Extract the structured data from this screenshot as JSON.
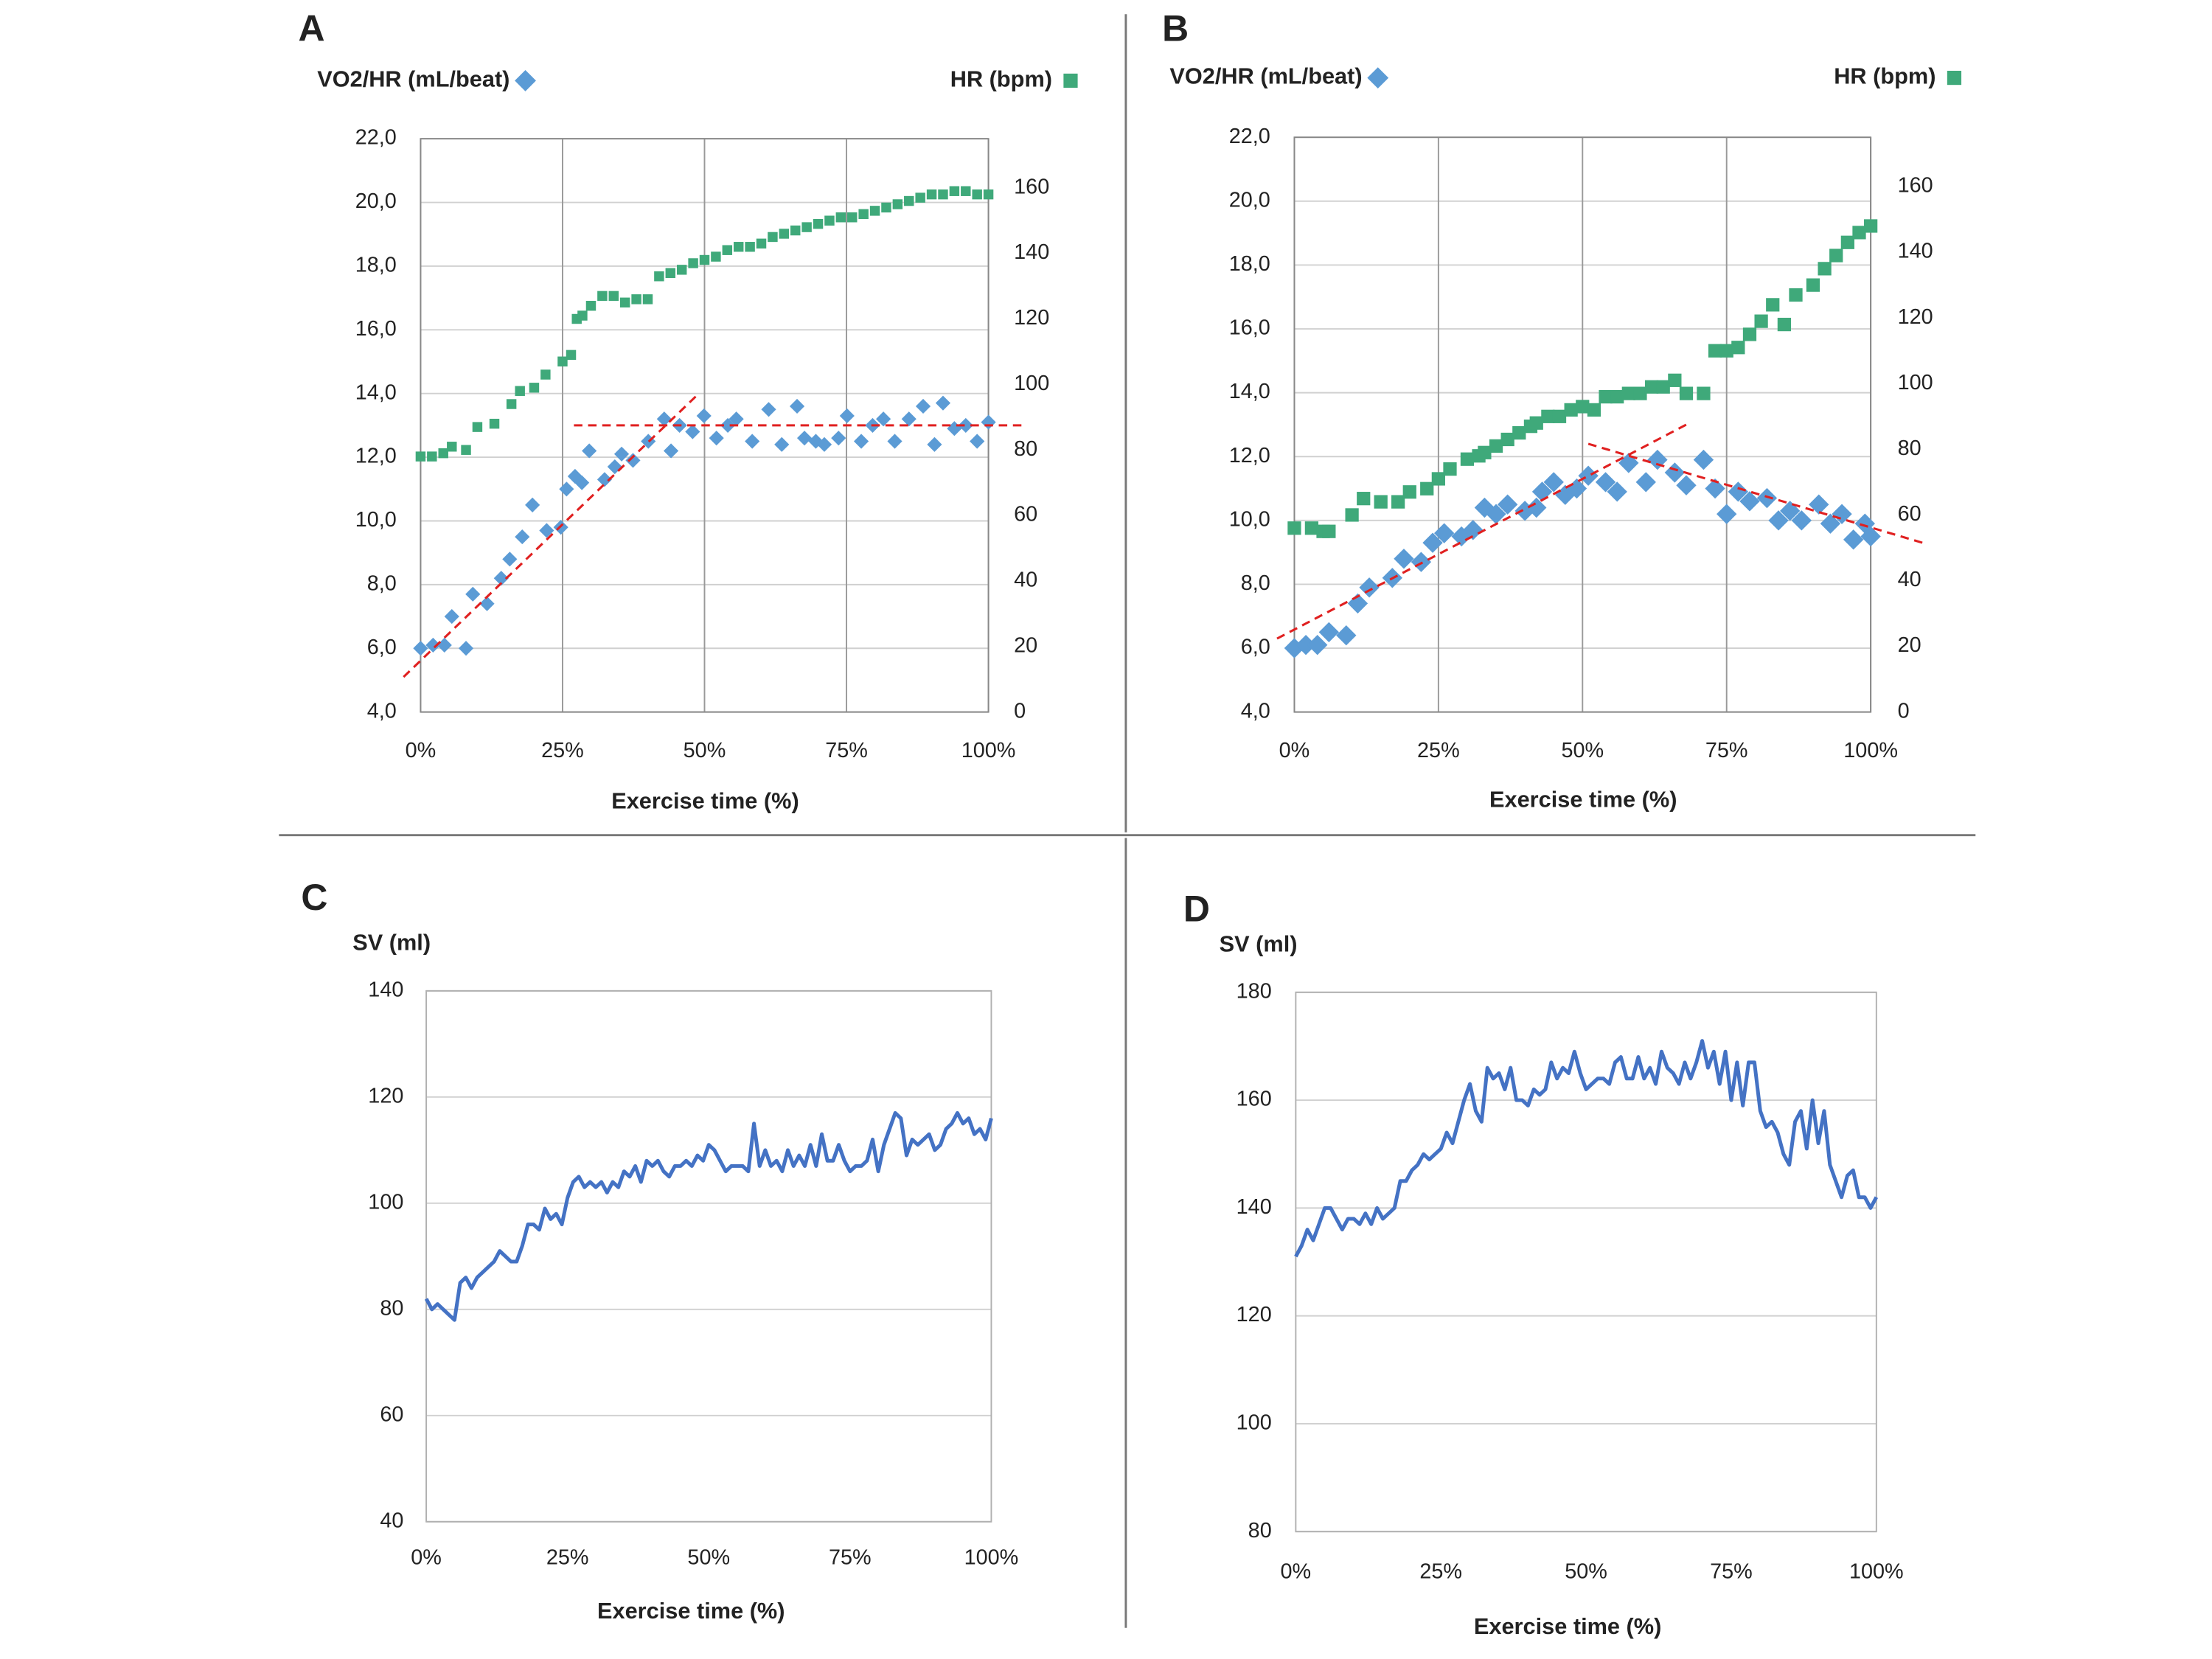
{
  "chart_data": [
    {
      "label": "A",
      "type": "scatter",
      "xlabel": "Exercise time (%)",
      "xlim": [
        0,
        100
      ],
      "ylim": [
        4,
        22
      ],
      "y2lim": [
        0,
        175
      ],
      "grid": [
        "x",
        "y"
      ],
      "xticks": [
        {
          "value": 0,
          "label": "0%"
        },
        {
          "value": 25,
          "label": "25%"
        },
        {
          "value": 50,
          "label": "50%"
        },
        {
          "value": 75,
          "label": "75%"
        },
        {
          "value": 100,
          "label": "100%"
        }
      ],
      "yticks": [
        {
          "value": 4,
          "label": "4,0"
        },
        {
          "value": 6,
          "label": "6,0"
        },
        {
          "value": 8,
          "label": "8,0"
        },
        {
          "value": 10,
          "label": "10,0"
        },
        {
          "value": 12,
          "label": "12,0"
        },
        {
          "value": 14,
          "label": "14,0"
        },
        {
          "value": 16,
          "label": "16,0"
        },
        {
          "value": 18,
          "label": "18,0"
        },
        {
          "value": 20,
          "label": "20,0"
        },
        {
          "value": 22,
          "label": "22,0"
        }
      ],
      "y2ticks": [
        0,
        20,
        40,
        60,
        80,
        100,
        120,
        140,
        160
      ],
      "series": [
        {
          "name": "VO2/HR (mL/beat)",
          "color": "#5b9bd5",
          "marker": "diamond",
          "x": [
            0,
            2.2,
            4.2,
            5.5,
            8,
            9.2,
            11.7,
            14.2,
            15.7,
            17.9,
            19.7,
            22.2,
            24.7,
            25.7,
            27.2,
            28.4,
            29.7,
            32.4,
            34.2,
            35.4,
            37.4,
            40.1,
            42.9,
            44.1,
            45.6,
            47.9,
            49.9,
            52.1,
            54.1,
            55.6,
            58.4,
            61.3,
            63.6,
            66.3,
            67.6,
            69.6,
            71.1,
            73.6,
            75.1,
            77.6,
            79.6,
            81.5,
            83.5,
            86,
            88.5,
            90.5,
            92,
            94,
            96,
            98,
            100
          ],
          "values": [
            6.0,
            6.1,
            6.1,
            7.0,
            6.0,
            7.7,
            7.4,
            8.2,
            8.8,
            9.5,
            10.5,
            9.7,
            9.8,
            11.0,
            11.4,
            11.2,
            12.2,
            11.3,
            11.7,
            12.1,
            11.9,
            12.5,
            13.2,
            12.2,
            13.0,
            12.8,
            13.3,
            12.6,
            13.0,
            13.2,
            12.5,
            13.5,
            12.4,
            13.6,
            12.6,
            12.5,
            12.4,
            12.6,
            13.3,
            12.5,
            13.0,
            13.2,
            12.5,
            13.2,
            13.6,
            12.4,
            13.7,
            12.9,
            13.0,
            12.5,
            13.1
          ]
        },
        {
          "name": "HR (bpm)",
          "color": "#3fa97a",
          "marker": "square",
          "axis": "y2",
          "x": [
            0,
            2,
            4,
            5.5,
            8,
            10,
            13,
            16,
            17.5,
            20,
            22,
            25,
            26.5,
            27.5,
            28.5,
            30,
            32,
            34,
            36,
            38,
            40,
            42,
            44,
            46,
            48,
            50,
            52,
            54,
            56,
            58,
            60,
            62,
            64,
            66,
            68,
            70,
            72,
            74,
            76,
            78,
            80,
            82,
            84,
            86,
            88,
            90,
            92,
            94,
            96,
            98,
            100
          ],
          "values": [
            78,
            78,
            79,
            81,
            80,
            87,
            88,
            94,
            98,
            99,
            103,
            107,
            109,
            120,
            121,
            124,
            127,
            127,
            125,
            126,
            126,
            133,
            134,
            135,
            137,
            138,
            139,
            141,
            142,
            142,
            143,
            145,
            146,
            147,
            148,
            149,
            150,
            151,
            151,
            152,
            153,
            154,
            155,
            156,
            157,
            158,
            158,
            159,
            159,
            158,
            158
          ]
        }
      ],
      "trend_lines": [
        {
          "color": "#e02020",
          "x": [
            -3,
            49
          ],
          "y": [
            5.1,
            14.0
          ]
        },
        {
          "color": "#e02020",
          "x": [
            27,
            106
          ],
          "y": [
            13,
            13
          ]
        }
      ]
    },
    {
      "label": "B",
      "type": "scatter",
      "xlabel": "Exercise time (%)",
      "xlim": [
        0,
        100
      ],
      "ylim": [
        4,
        22
      ],
      "y2lim": [
        0,
        175
      ],
      "grid": [
        "x",
        "y"
      ],
      "xticks": [
        {
          "value": 0,
          "label": "0%"
        },
        {
          "value": 25,
          "label": "25%"
        },
        {
          "value": 50,
          "label": "50%"
        },
        {
          "value": 75,
          "label": "75%"
        },
        {
          "value": 100,
          "label": "100%"
        }
      ],
      "yticks": [
        {
          "value": 4,
          "label": "4,0"
        },
        {
          "value": 6,
          "label": "6,0"
        },
        {
          "value": 8,
          "label": "8,0"
        },
        {
          "value": 10,
          "label": "10,0"
        },
        {
          "value": 12,
          "label": "12,0"
        },
        {
          "value": 14,
          "label": "14,0"
        },
        {
          "value": 16,
          "label": "16,0"
        },
        {
          "value": 18,
          "label": "18,0"
        },
        {
          "value": 20,
          "label": "20,0"
        },
        {
          "value": 22,
          "label": "22,0"
        }
      ],
      "y2ticks": [
        0,
        20,
        40,
        60,
        80,
        100,
        120,
        140,
        160
      ],
      "series": [
        {
          "name": "VO2/HR (mL/beat)",
          "color": "#5b9bd5",
          "marker": "diamond",
          "x": [
            0,
            2,
            4,
            6,
            9,
            11,
            13,
            17,
            19,
            22,
            24,
            26,
            29,
            31,
            33,
            35,
            37,
            40,
            42,
            43,
            45,
            47,
            49,
            51,
            54,
            56,
            58,
            61,
            63,
            66,
            68,
            71,
            73,
            75,
            77,
            79,
            82,
            84,
            86,
            88,
            91,
            93,
            95,
            97,
            99,
            100
          ],
          "values": [
            6.0,
            6.1,
            6.1,
            6.5,
            6.4,
            7.4,
            7.9,
            8.2,
            8.8,
            8.7,
            9.3,
            9.6,
            9.5,
            9.7,
            10.4,
            10.2,
            10.5,
            10.3,
            10.4,
            10.9,
            11.2,
            10.8,
            11.0,
            11.4,
            11.2,
            10.9,
            11.8,
            11.2,
            11.9,
            11.5,
            11.1,
            11.9,
            11.0,
            10.2,
            10.9,
            10.6,
            10.7,
            10.0,
            10.3,
            10.0,
            10.5,
            9.9,
            10.2,
            9.4,
            9.9,
            9.5
          ]
        },
        {
          "name": "HR (bpm)",
          "color": "#3fa97a",
          "marker": "square",
          "axis": "y2",
          "x": [
            0,
            3,
            5,
            6,
            10,
            12,
            15,
            18,
            20,
            23,
            25,
            27,
            30,
            32,
            33,
            35,
            37,
            39,
            41,
            42,
            44,
            46,
            48,
            50,
            52,
            54,
            56,
            58,
            60,
            62,
            64,
            66,
            68,
            71,
            73,
            75,
            77,
            79,
            81,
            83,
            85,
            87,
            90,
            92,
            94,
            96,
            98,
            100
          ],
          "values": [
            56,
            56,
            55,
            55,
            60,
            65,
            64,
            64,
            67,
            68,
            71,
            74,
            77,
            78,
            79,
            81,
            83,
            85,
            87,
            88,
            90,
            90,
            92,
            93,
            92,
            96,
            96,
            97,
            97,
            99,
            99,
            101,
            97,
            97,
            110,
            110,
            111,
            115,
            119,
            124,
            118,
            127,
            130,
            135,
            139,
            143,
            146,
            148
          ]
        }
      ],
      "trend_lines": [
        {
          "color": "#e02020",
          "x": [
            -3,
            68
          ],
          "y": [
            6.3,
            13.0
          ]
        },
        {
          "color": "#e02020",
          "x": [
            51,
            109
          ],
          "y": [
            12.4,
            9.3
          ]
        }
      ]
    },
    {
      "label": "C",
      "type": "line",
      "ylabel": "SV (ml)",
      "xlabel": "Exercise time (%)",
      "xlim": [
        0,
        100
      ],
      "ylim": [
        40,
        140
      ],
      "grid": [
        "y"
      ],
      "xticks": [
        {
          "value": 0,
          "label": "0%"
        },
        {
          "value": 25,
          "label": "25%"
        },
        {
          "value": 50,
          "label": "50%"
        },
        {
          "value": 75,
          "label": "75%"
        },
        {
          "value": 100,
          "label": "100%"
        }
      ],
      "yticks": [
        40,
        60,
        80,
        100,
        120,
        140
      ],
      "x": [
        0,
        1,
        2,
        3,
        4,
        5,
        6,
        7,
        8,
        9,
        10,
        11,
        12,
        13,
        14,
        15,
        16,
        17,
        18,
        19,
        20,
        21,
        22,
        23,
        24,
        25,
        26,
        27,
        28,
        29,
        30,
        31,
        32,
        33,
        34,
        35,
        36,
        37,
        38,
        39,
        40,
        41,
        42,
        43,
        44,
        45,
        46,
        47,
        48,
        49,
        50,
        51,
        52,
        53,
        54,
        55,
        56,
        57,
        58,
        59,
        60,
        61,
        62,
        63,
        64,
        65,
        66,
        67,
        68,
        69,
        70,
        71,
        72,
        73,
        74,
        75,
        76,
        77,
        78,
        79,
        80,
        81,
        82,
        83,
        84,
        85,
        86,
        87,
        88,
        89,
        90,
        91,
        92,
        93,
        94,
        95,
        96,
        97,
        98,
        99,
        100
      ],
      "color": "#4472c4",
      "values": [
        82,
        80,
        81,
        80,
        79,
        78,
        85,
        86,
        84,
        86,
        87,
        88,
        89,
        91,
        90,
        89,
        89,
        92,
        96,
        96,
        95,
        99,
        97,
        98,
        96,
        101,
        104,
        105,
        103,
        104,
        103,
        104,
        102,
        104,
        103,
        106,
        105,
        107,
        104,
        108,
        107,
        108,
        106,
        105,
        107,
        107,
        108,
        107,
        109,
        108,
        111,
        110,
        108,
        106,
        107,
        107,
        107,
        106,
        115,
        107,
        110,
        107,
        108,
        106,
        110,
        107,
        109,
        107,
        111,
        107,
        113,
        108,
        108,
        111,
        108,
        106,
        107,
        107,
        108,
        112,
        106,
        111,
        114,
        117,
        116,
        109,
        112,
        111,
        112,
        113,
        110,
        111,
        114,
        115,
        117,
        115,
        116,
        113,
        114,
        112,
        116
      ]
    },
    {
      "label": "D",
      "type": "line",
      "ylabel": "SV (ml)",
      "xlabel": "Exercise time (%)",
      "xlim": [
        0,
        100
      ],
      "ylim": [
        80,
        180
      ],
      "grid": [
        "y"
      ],
      "xticks": [
        {
          "value": 0,
          "label": "0%"
        },
        {
          "value": 25,
          "label": "25%"
        },
        {
          "value": 50,
          "label": "50%"
        },
        {
          "value": 75,
          "label": "75%"
        },
        {
          "value": 100,
          "label": "100%"
        }
      ],
      "yticks": [
        80,
        100,
        120,
        140,
        160,
        180
      ],
      "x": [
        0,
        1,
        2,
        3,
        4,
        5,
        6,
        7,
        8,
        9,
        10,
        11,
        12,
        13,
        14,
        15,
        16,
        17,
        18,
        19,
        20,
        21,
        22,
        23,
        24,
        25,
        26,
        27,
        28,
        29,
        30,
        31,
        32,
        33,
        34,
        35,
        36,
        37,
        38,
        39,
        40,
        41,
        42,
        43,
        44,
        45,
        46,
        47,
        48,
        49,
        50,
        51,
        52,
        53,
        54,
        55,
        56,
        57,
        58,
        59,
        60,
        61,
        62,
        63,
        64,
        65,
        66,
        67,
        68,
        69,
        70,
        71,
        72,
        73,
        74,
        75,
        76,
        77,
        78,
        79,
        80,
        81,
        82,
        83,
        84,
        85,
        86,
        87,
        88,
        89,
        90,
        91,
        92,
        93,
        94,
        95,
        96,
        97,
        98,
        99,
        100
      ],
      "color": "#4472c4",
      "values": [
        131,
        133,
        136,
        134,
        137,
        140,
        140,
        138,
        136,
        138,
        138,
        137,
        139,
        137,
        140,
        138,
        139,
        140,
        145,
        145,
        147,
        148,
        150,
        149,
        150,
        151,
        154,
        152,
        156,
        160,
        163,
        158,
        156,
        166,
        164,
        165,
        162,
        166,
        160,
        160,
        159,
        162,
        161,
        162,
        167,
        164,
        166,
        165,
        169,
        165,
        162,
        163,
        164,
        164,
        163,
        167,
        168,
        164,
        164,
        168,
        164,
        166,
        163,
        169,
        166,
        165,
        163,
        167,
        164,
        167,
        171,
        166,
        169,
        163,
        169,
        160,
        167,
        159,
        167,
        167,
        158,
        155,
        156,
        154,
        150,
        148,
        156,
        158,
        151,
        160,
        152,
        158,
        148,
        145,
        142,
        146,
        147,
        142,
        142,
        140,
        142
      ]
    }
  ]
}
